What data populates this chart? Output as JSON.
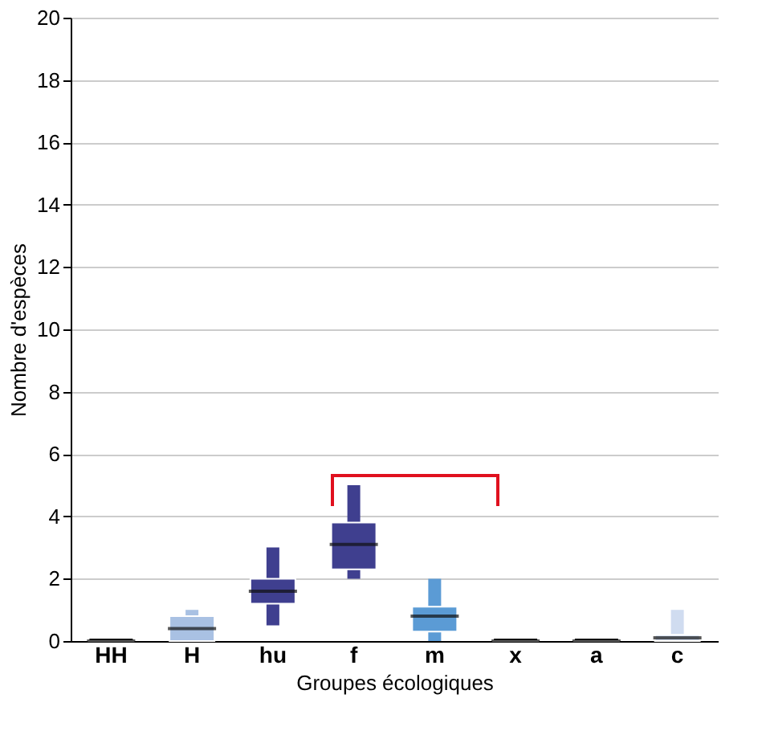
{
  "chart_data": {
    "type": "box",
    "xlabel": "Groupes écologiques",
    "ylabel": "Nombre d'espèces",
    "categories": [
      "HH",
      "H",
      "hu",
      "f",
      "m",
      "x",
      "a",
      "c"
    ],
    "boxes": [
      {
        "low": 0,
        "q1": 0,
        "median": 0,
        "q3": 0.1,
        "high": 0.1
      },
      {
        "low": 0,
        "q1": 0,
        "median": 0.4,
        "q3": 0.8,
        "high": 1
      },
      {
        "low": 0.5,
        "q1": 1.2,
        "median": 1.6,
        "q3": 2,
        "high": 3
      },
      {
        "low": 2,
        "q1": 2.3,
        "median": 3.1,
        "q3": 3.8,
        "high": 5
      },
      {
        "low": 0,
        "q1": 0.3,
        "median": 0.8,
        "q3": 1.1,
        "high": 2
      },
      {
        "low": 0,
        "q1": 0,
        "median": 0,
        "q3": 0.1,
        "high": 0.1
      },
      {
        "low": 0,
        "q1": 0,
        "median": 0,
        "q3": 0.1,
        "high": 0.1
      },
      {
        "low": 0,
        "q1": 0,
        "median": 0.1,
        "q3": 0.2,
        "high": 1
      }
    ],
    "colors": [
      "#111111",
      "#a9c1e3",
      "#3f3f8f",
      "#3f3f8f",
      "#5b9bd5",
      "#111111",
      "#111111",
      "#d0dcf0"
    ],
    "ylim": [
      0,
      20
    ],
    "yticks": [
      0,
      2,
      4,
      6,
      8,
      10,
      12,
      14,
      16,
      18,
      20
    ],
    "grid": "y"
  }
}
